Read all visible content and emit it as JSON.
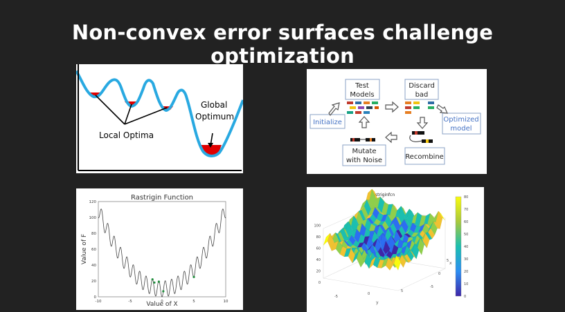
{
  "slide": {
    "title": "Non-convex error surfaces challenge optimization"
  },
  "error_surface": {
    "local_label": "Local Optima",
    "global_label_1": "Global",
    "global_label_2": "Optimum",
    "curve_color": "#29a9e1",
    "fill_color": "#e00000"
  },
  "evolution": {
    "initialize": "Initialize",
    "test_1": "Test",
    "test_2": "Models",
    "discard_1": "Discard",
    "discard_2": "bad",
    "optimized_1": "Optimized",
    "optimized_2": "model",
    "recombine": "Recombine",
    "mutate_1": "Mutate",
    "mutate_2": "with Noise",
    "label_color": "#4472c4"
  },
  "rastrigin_1d": {
    "title": "Rastrigin Function",
    "xlabel": "Value of X",
    "ylabel": "Value of F",
    "xticks": [
      "-10",
      "-5",
      "0",
      "5",
      "10"
    ],
    "yticks": [
      "0",
      "20",
      "40",
      "60",
      "80",
      "100",
      "120"
    ],
    "xlim": [
      -10,
      10
    ],
    "ylim": [
      0,
      120
    ],
    "points": [
      {
        "x": -1.5,
        "y": 22
      },
      {
        "x": -1.2,
        "y": 18
      },
      {
        "x": -0.5,
        "y": 19
      },
      {
        "x": 0.2,
        "y": 7
      },
      {
        "x": 5.0,
        "y": 25
      }
    ]
  },
  "rastrigin_3d": {
    "title": "rastriginfcn",
    "zticks": [
      "0",
      "20",
      "40",
      "60",
      "80",
      "100"
    ],
    "colorbar_ticks": [
      "0",
      "10",
      "20",
      "30",
      "40",
      "50",
      "60",
      "70",
      "80"
    ],
    "x_axis_label": "x",
    "y_axis_label": "y",
    "x_ticks": [
      "5",
      "0",
      "-5"
    ],
    "y_ticks": [
      "-5",
      "0",
      "5"
    ]
  }
}
